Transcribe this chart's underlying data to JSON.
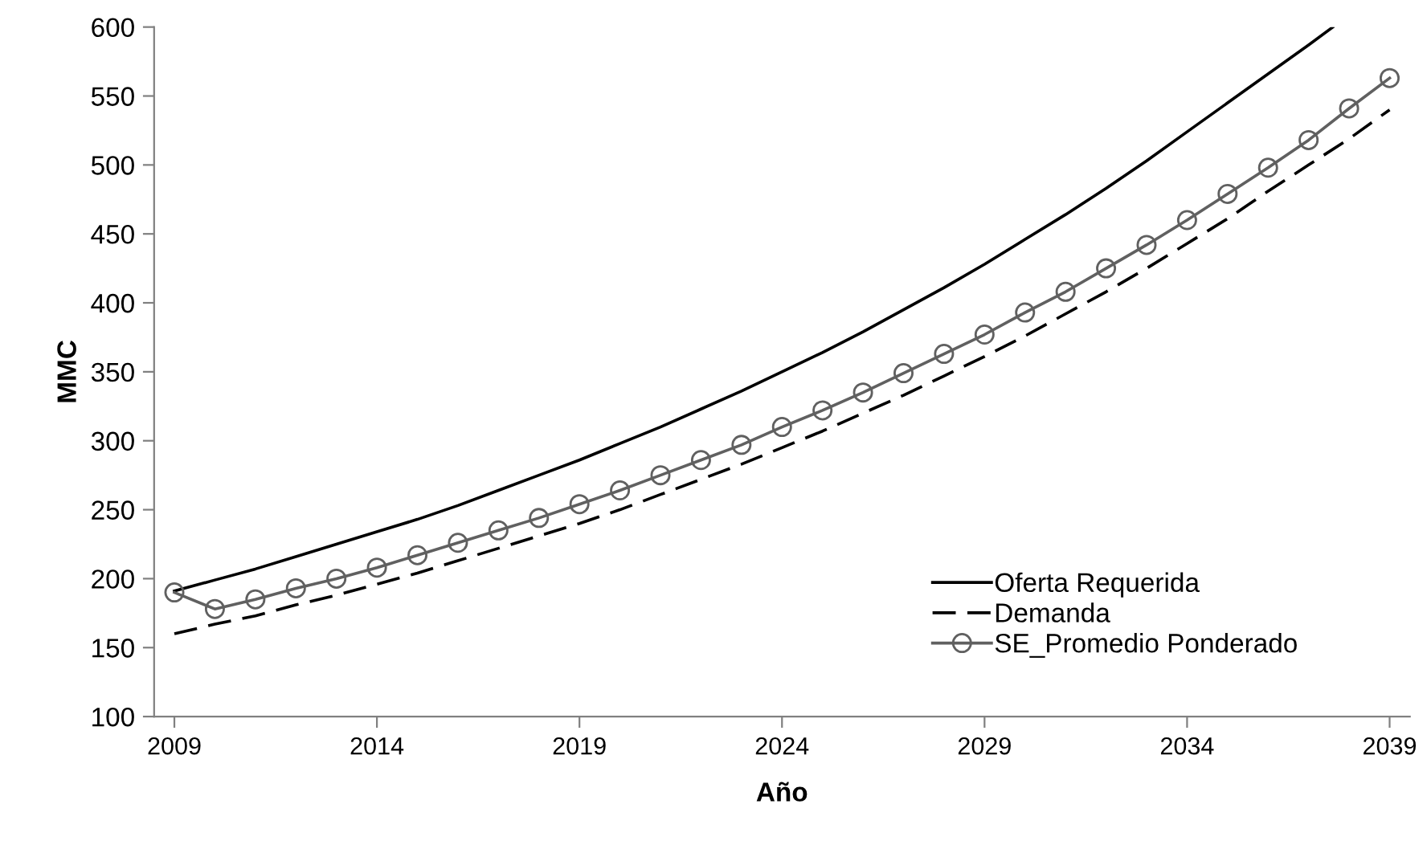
{
  "chart_data": {
    "type": "line",
    "xlabel": "Año",
    "ylabel": "MMC",
    "xlim": [
      2008.5,
      2039.5
    ],
    "ylim": [
      100,
      600
    ],
    "xticks": [
      2009,
      2014,
      2019,
      2024,
      2029,
      2034,
      2039
    ],
    "yticks": [
      100,
      150,
      200,
      250,
      300,
      350,
      400,
      450,
      500,
      550,
      600
    ],
    "grid": false,
    "legend": "bottom right",
    "x": [
      2009,
      2010,
      2011,
      2012,
      2013,
      2014,
      2015,
      2016,
      2017,
      2018,
      2019,
      2020,
      2021,
      2022,
      2023,
      2024,
      2025,
      2026,
      2027,
      2028,
      2029,
      2030,
      2031,
      2032,
      2033,
      2034,
      2035,
      2036,
      2037,
      2038,
      2039
    ],
    "series": [
      {
        "name": "Oferta Requerida",
        "color": "#000000",
        "line_style": "solid",
        "marker": "none",
        "x": [
          2009,
          2010,
          2011,
          2012,
          2013,
          2014,
          2015,
          2016,
          2017,
          2018,
          2019,
          2020,
          2021,
          2022,
          2023,
          2024,
          2025,
          2026,
          2027,
          2028,
          2029,
          2030,
          2031,
          2032,
          2033,
          2034,
          2035,
          2036,
          2037,
          2037.6
        ],
        "values": [
          191,
          199,
          207,
          216,
          225,
          234,
          243,
          253,
          264,
          275,
          286,
          298,
          310,
          323,
          336,
          350,
          364,
          379,
          395,
          411,
          428,
          446,
          464,
          483,
          503,
          524,
          545,
          566,
          587,
          600
        ]
      },
      {
        "name": "Demanda",
        "color": "#000000",
        "line_style": "dashed",
        "marker": "none",
        "values": [
          160,
          167,
          173,
          181,
          188,
          196,
          204,
          213,
          222,
          231,
          240,
          250,
          261,
          272,
          283,
          295,
          307,
          320,
          333,
          347,
          361,
          376,
          392,
          408,
          425,
          443,
          461,
          481,
          500,
          519,
          540
        ]
      },
      {
        "name": "SE_Promedio Ponderado",
        "color": "#606060",
        "line_style": "solid",
        "marker": "circle",
        "values": [
          190,
          178,
          185,
          193,
          200,
          208,
          217,
          226,
          235,
          244,
          254,
          264,
          275,
          286,
          297,
          310,
          322,
          335,
          349,
          363,
          377,
          393,
          408,
          425,
          442,
          460,
          479,
          498,
          518,
          541,
          563
        ]
      }
    ]
  }
}
